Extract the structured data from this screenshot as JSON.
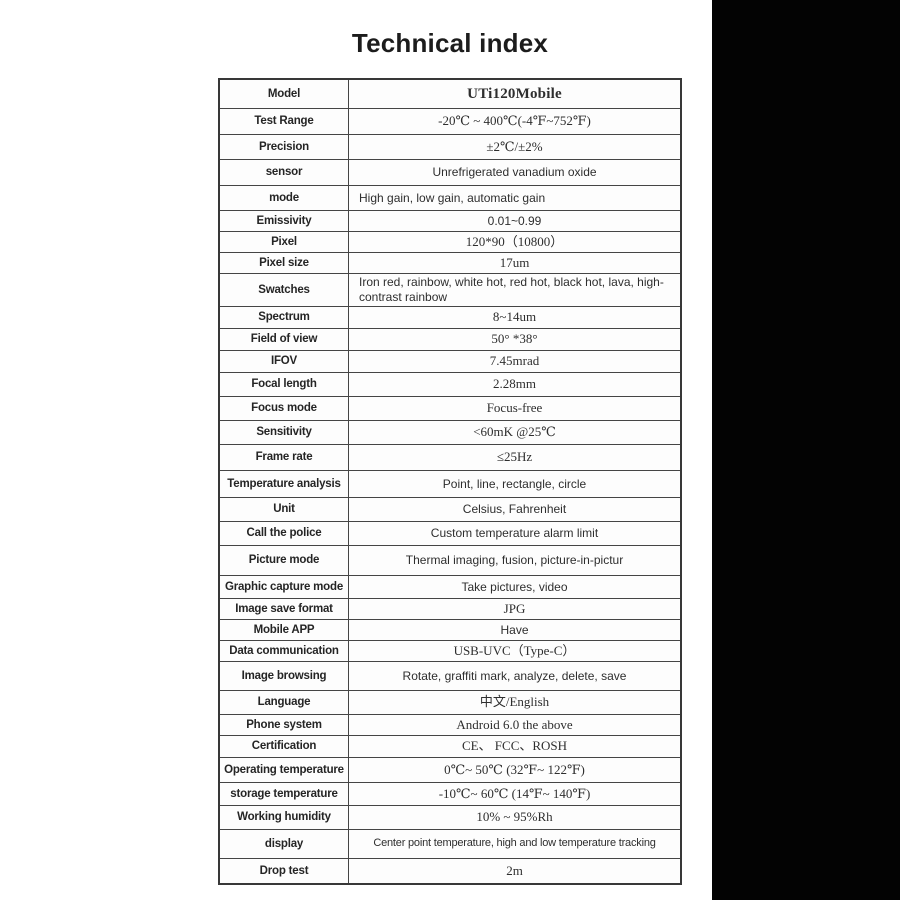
{
  "title": "Technical index",
  "colors": {
    "page_background": "#ffffff",
    "right_panel": "#030303",
    "table_border": "#454545",
    "text": "#2b2b2b"
  },
  "table": {
    "rows": [
      {
        "label": "Model",
        "value": "UTi120Mobile",
        "serif": true,
        "bold": true
      },
      {
        "label": "Test Range",
        "value": "-20℃ ~ 400℃(-4℉~752℉)",
        "serif": true
      },
      {
        "label": "Precision",
        "value": "±2℃/±2%",
        "serif": true
      },
      {
        "label": "sensor",
        "value": "Unrefrigerated vanadium oxide",
        "serif": false
      },
      {
        "label": "mode",
        "value": "High gain, low gain, automatic gain",
        "serif": false,
        "align": "left"
      },
      {
        "label": "Emissivity",
        "value": "0.01~0.99",
        "serif": false
      },
      {
        "label": "Pixel",
        "value": "120*90（10800）",
        "serif": true
      },
      {
        "label": "Pixel size",
        "value": "17um",
        "serif": true
      },
      {
        "label": "Swatches",
        "value": "Iron red, rainbow, white hot, red hot, black hot, lava, high-contrast rainbow",
        "serif": false,
        "align": "left"
      },
      {
        "label": "Spectrum",
        "value": "8~14um",
        "serif": true
      },
      {
        "label": "Field of view",
        "value": "50° *38°",
        "serif": true
      },
      {
        "label": "IFOV",
        "value": "7.45mrad",
        "serif": true
      },
      {
        "label": "Focal length",
        "value": "2.28mm",
        "serif": true
      },
      {
        "label": "Focus mode",
        "value": "Focus-free",
        "serif": true
      },
      {
        "label": "Sensitivity",
        "value": "<60mK @25℃",
        "serif": true
      },
      {
        "label": "Frame rate",
        "value": "≤25Hz",
        "serif": true
      },
      {
        "label": "Temperature analysis",
        "value": "Point, line, rectangle, circle",
        "serif": false
      },
      {
        "label": "Unit",
        "value": "Celsius, Fahrenheit",
        "serif": false
      },
      {
        "label": "Call the police",
        "value": "Custom temperature alarm limit",
        "serif": false
      },
      {
        "label": "Picture mode",
        "value": "Thermal imaging, fusion, picture-in-pictur",
        "serif": false
      },
      {
        "label": "Graphic capture mode",
        "value": "Take pictures, video",
        "serif": false
      },
      {
        "label": "Image save format",
        "value": "JPG",
        "serif": true
      },
      {
        "label": "Mobile APP",
        "value": "Have",
        "serif": false
      },
      {
        "label": "Data communication",
        "value": "USB-UVC（Type-C）",
        "serif": true
      },
      {
        "label": "Image browsing",
        "value": "Rotate, graffiti mark, analyze, delete, save",
        "serif": false
      },
      {
        "label": "Language",
        "value": "中文/English",
        "serif": true
      },
      {
        "label": "Phone system",
        "value": "Android 6.0  the above",
        "serif": true
      },
      {
        "label": "Certification",
        "value": "CE、 FCC、ROSH",
        "serif": true
      },
      {
        "label": "Operating temperature",
        "value": "0℃~ 50℃ (32℉~ 122℉)",
        "serif": true
      },
      {
        "label": "storage temperature",
        "value": "-10℃~ 60℃ (14℉~ 140℉)",
        "serif": true
      },
      {
        "label": "Working humidity",
        "value": "10% ~ 95%Rh",
        "serif": true
      },
      {
        "label": "display",
        "value": "Center point temperature, high and low temperature tracking",
        "serif": false,
        "small": true
      },
      {
        "label": "Drop test",
        "value": "2m",
        "serif": true
      }
    ]
  }
}
